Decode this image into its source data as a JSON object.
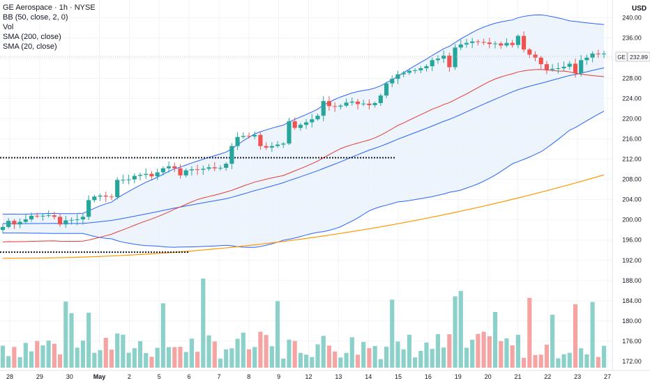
{
  "legend": {
    "title": "GE Aerospace · 1h · NYSE",
    "bb": "BB (50, close, 2, 0)",
    "vol": "Vol",
    "sma200": "SMA (200, close)",
    "sma20": "SMA (20, close)"
  },
  "price_axis": {
    "currency": "USD",
    "ticks": [
      "240.00",
      "236.00",
      "232.00",
      "228.00",
      "224.00",
      "220.00",
      "216.00",
      "212.00",
      "208.00",
      "204.00",
      "200.00",
      "196.00",
      "192.00",
      "188.00",
      "184.00",
      "180.00",
      "176.00",
      "172.00"
    ]
  },
  "last_price": {
    "symbol": "GE",
    "value": "232.89"
  },
  "time_axis": {
    "labels": [
      "28",
      "29",
      "30",
      "May",
      "2",
      "5",
      "6",
      "7",
      "8",
      "9",
      "12",
      "13",
      "14",
      "15",
      "16",
      "19",
      "20",
      "21",
      "22",
      "23",
      "27"
    ]
  },
  "colors": {
    "up": "#26a69a",
    "down": "#ef5350",
    "up_volume": "#8bd0c9",
    "down_volume": "#f4a5a3",
    "bb_line": "#2962ff",
    "bb_fill": "#e8f1fb",
    "sma200": "#ff9800",
    "sma20": "#e53935",
    "grid": "#f0f3fa",
    "text": "#131722"
  },
  "chart_data": {
    "type": "candlestick",
    "symbol": "GE",
    "interval": "1h",
    "y_range": [
      170.2,
      243.5
    ],
    "closes": [
      198.6,
      199.8,
      199.1,
      199.6,
      200.1,
      200.8,
      200.7,
      200.8,
      200.9,
      200.6,
      199.1,
      199.9,
      200.0,
      200.1,
      200.6,
      203.9,
      204.6,
      204.8,
      204.6,
      204.5,
      207.9,
      207.9,
      208.0,
      208.7,
      208.9,
      209.1,
      208.6,
      209.4,
      210.2,
      210.6,
      210.2,
      208.8,
      209.8,
      210.0,
      209.9,
      210.1,
      210.4,
      210.2,
      210.3,
      211.1,
      214.6,
      216.4,
      216.6,
      216.5,
      216.8,
      214.6,
      214.3,
      214.6,
      214.9,
      215.1,
      219.5,
      218.2,
      218.8,
      219.3,
      219.9,
      220.6,
      223.5,
      222.5,
      222.4,
      222.6,
      223.2,
      223.4,
      222.9,
      223.0,
      222.7,
      223.1,
      224.6,
      227.0,
      227.9,
      228.8,
      229.1,
      229.5,
      229.6,
      230.0,
      230.4,
      231.6,
      231.9,
      232.5,
      230.2,
      234.1,
      234.7,
      235.0,
      235.3,
      235.2,
      235.1,
      234.8,
      234.9,
      234.5,
      235.0,
      234.6,
      236.4,
      233.7,
      232.7,
      232.1,
      230.8,
      229.7,
      229.9,
      230.0,
      230.3,
      230.9,
      229.0,
      231.6,
      232.1,
      232.9,
      232.8,
      232.9
    ],
    "price_levels": [
      {
        "value": 212.3,
        "style": "dotted",
        "color": "#131722"
      },
      {
        "value": 193.6,
        "style": "dotted",
        "color": "#131722"
      }
    ],
    "last_close": 232.89,
    "indicators": [
      "BB (50, close, 2, 0)",
      "SMA (200, close)",
      "SMA (20, close)",
      "Vol"
    ]
  }
}
